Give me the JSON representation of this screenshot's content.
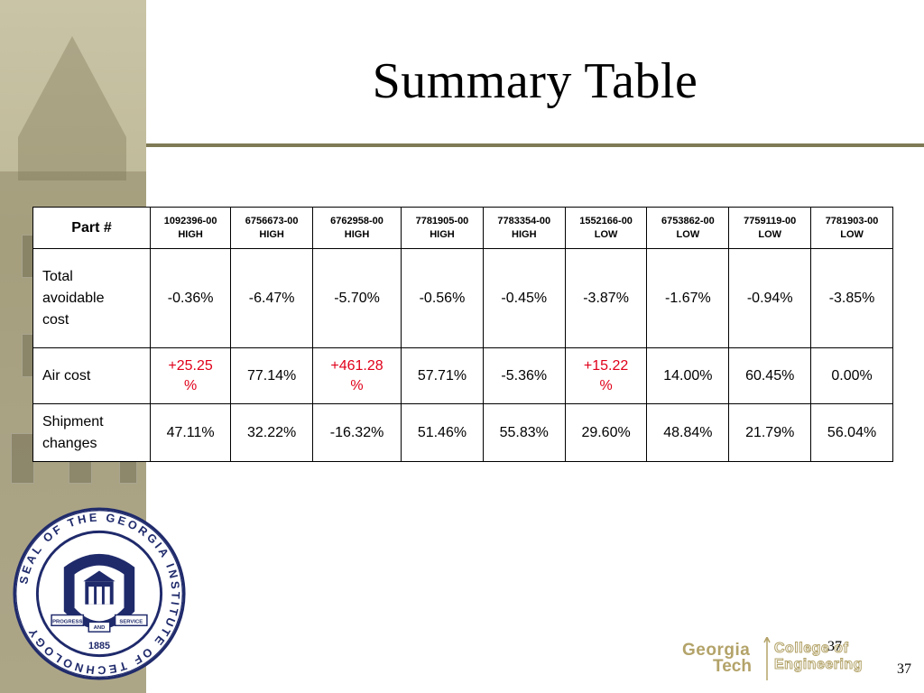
{
  "slide": {
    "title": "Summary Table",
    "slide_number": "37",
    "slide_number_logo": "37"
  },
  "table": {
    "header_label": "Part #",
    "columns": [
      {
        "part": "1092396-00",
        "level": "HIGH"
      },
      {
        "part": "6756673-00",
        "level": "HIGH"
      },
      {
        "part": "6762958-00",
        "level": "HIGH"
      },
      {
        "part": "7781905-00",
        "level": "HIGH"
      },
      {
        "part": "7783354-00",
        "level": "HIGH"
      },
      {
        "part": "1552166-00",
        "level": "LOW"
      },
      {
        "part": "6753862-00",
        "level": "LOW"
      },
      {
        "part": "7759119-00",
        "level": "LOW"
      },
      {
        "part": "7781903-00",
        "level": "LOW"
      }
    ],
    "rows": [
      {
        "label_lines": [
          "Total",
          "avoidable",
          "cost"
        ],
        "values": [
          "-0.36%",
          "-6.47%",
          "-5.70%",
          "-0.56%",
          "-0.45%",
          "-3.87%",
          "-1.67%",
          "-0.94%",
          "-3.85%"
        ]
      },
      {
        "label": "Air cost",
        "values": [
          "+25.25",
          "77.14%",
          "+461.28",
          "57.71%",
          "-5.36%",
          "+15.22",
          "14.00%",
          "60.45%",
          "0.00%"
        ],
        "wrapped_suffix": "%"
      },
      {
        "label_lines": [
          "Shipment",
          "changes"
        ],
        "values": [
          "47.11%",
          "32.22%",
          "-16.32%",
          "51.46%",
          "55.83%",
          "29.60%",
          "48.84%",
          "21.79%",
          "56.04%"
        ]
      }
    ],
    "highlight_color": "#e0001a"
  },
  "logo": {
    "line1_left": "Georgia",
    "line2_left": "Tech",
    "line1_right": "College of",
    "line2_right": "Engineering",
    "gold_color": "#b3a369"
  },
  "seal": {
    "ring_text": "SEAL OF THE GEORGIA INSTITUTE OF TECHNOLOGY",
    "ribbon_left": "PROGRESS",
    "ribbon_mid": "AND",
    "ribbon_right": "SERVICE",
    "year": "1885",
    "navy_color": "#1f2a6b"
  }
}
